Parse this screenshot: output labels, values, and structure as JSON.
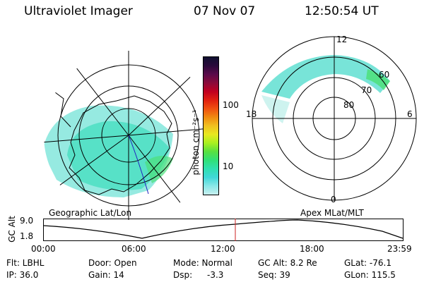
{
  "header": {
    "instrument": "Ultraviolet Imager",
    "date": "07 Nov 07",
    "time": "12:50:54 UT"
  },
  "colorbar": {
    "label": "photon cm⁻²s⁻¹",
    "tick_labels": [
      "100",
      "10"
    ],
    "colors": [
      "#101030",
      "#2a0a3a",
      "#5a0a4a",
      "#8a0a3a",
      "#c00020",
      "#e02010",
      "#f05010",
      "#f08a10",
      "#f0c020",
      "#e8e820",
      "#a8f020",
      "#58e040",
      "#30e078",
      "#30e0b0",
      "#40d8d8",
      "#8ae8e8",
      "#c8f0f0"
    ]
  },
  "left_map": {
    "label": "Geographic Lat/Lon"
  },
  "right_map": {
    "label": "Apex MLat/MLT",
    "mlt_labels": [
      "12",
      "18",
      "6",
      "0"
    ],
    "lat_labels": [
      "60",
      "70",
      "80"
    ]
  },
  "timeline": {
    "ylabel": "GC Alt",
    "ytick_labels": [
      "9.0",
      "1.8"
    ],
    "xtick_labels": [
      "00:00",
      "06:00",
      "12:00",
      "18:00",
      "23:59"
    ],
    "marker_color": "#cc2222"
  },
  "info": {
    "flt": "Flt: LBHL",
    "ip": "IP: 36.0",
    "door": "Door: Open",
    "gain": "Gain: 14",
    "mode": "Mode: Normal",
    "dsp_label": "Dsp:",
    "dsp_value": "-3.3",
    "gc_alt": "GC Alt: 8.2 Re",
    "seq": "Seq: 39",
    "glat": "GLat: -76.1",
    "glon": "GLon: 115.5"
  }
}
